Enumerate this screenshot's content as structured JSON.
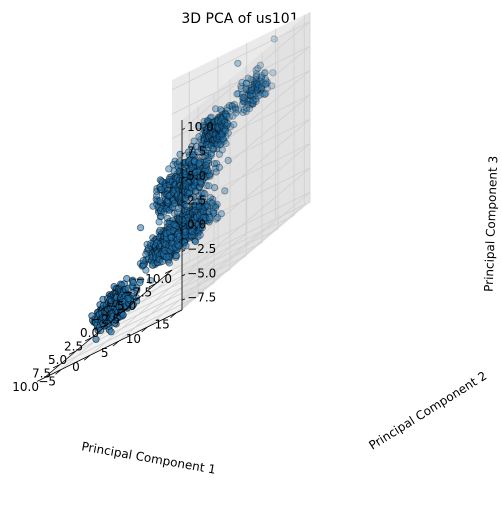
{
  "chart_data": {
    "type": "scatter",
    "projection": "3d",
    "title": "3D PCA of us101",
    "xlabel": "Principal Component 1",
    "ylabel": "Principal Component 2",
    "zlabel": "Principal Component 3",
    "xlim": [
      -10,
      10
    ],
    "ylim": [
      -8,
      16
    ],
    "zlim": [
      -8.5,
      11
    ],
    "x_ticks": [
      "−10.0",
      "−7.5",
      "−5.0",
      "−2.5",
      "0.0",
      "2.5",
      "5.0",
      "7.5",
      "10.0"
    ],
    "y_ticks": [
      "−5",
      "0",
      "5",
      "10",
      "15"
    ],
    "z_ticks": [
      "−7.5",
      "−5.0",
      "−2.5",
      "0.0",
      "2.5",
      "5.0",
      "7.5",
      "10.0"
    ],
    "grid": true,
    "marker_color": "#1f77b4",
    "marker_edge_color": "#000000",
    "clusters": [
      {
        "n": 700,
        "x": [
          -8.5,
          3.5
        ],
        "y": [
          -1.5,
          5.5
        ],
        "z": [
          -5.5,
          -1.0
        ]
      },
      {
        "n": 450,
        "x": [
          -6.0,
          5.0
        ],
        "y": [
          1.0,
          8.0
        ],
        "z": [
          -1.5,
          5.5
        ]
      },
      {
        "n": 250,
        "x": [
          -4.0,
          1.0
        ],
        "y": [
          6.0,
          12.0
        ],
        "z": [
          3.0,
          8.0
        ]
      },
      {
        "n": 300,
        "x": [
          2.0,
          9.5
        ],
        "y": [
          -3.0,
          2.0
        ],
        "z": [
          -8.0,
          -3.5
        ]
      },
      {
        "n": 160,
        "x": [
          3.0,
          9.5
        ],
        "y": [
          5.0,
          13.0
        ],
        "z": [
          -4.0,
          0.5
        ]
      },
      {
        "n": 120,
        "x": [
          -9.0,
          -4.0
        ],
        "y": [
          6.0,
          14.0
        ],
        "z": [
          4.0,
          9.0
        ]
      }
    ],
    "outliers": [
      {
        "x": -9.5,
        "y": 4.0,
        "z": 9.5
      },
      {
        "x": -8.0,
        "y": 12.0,
        "z": 10.5
      },
      {
        "x": 4.0,
        "y": 14.0,
        "z": 1.5
      },
      {
        "x": 9.0,
        "y": 7.0,
        "z": -5.5
      },
      {
        "x": 8.5,
        "y": 2.0,
        "z": -7.5
      },
      {
        "x": 9.5,
        "y": 10.0,
        "z": -4.0
      },
      {
        "x": -6.0,
        "y": -4.0,
        "z": -6.0
      },
      {
        "x": 0.0,
        "y": -6.0,
        "z": -7.5
      }
    ]
  }
}
